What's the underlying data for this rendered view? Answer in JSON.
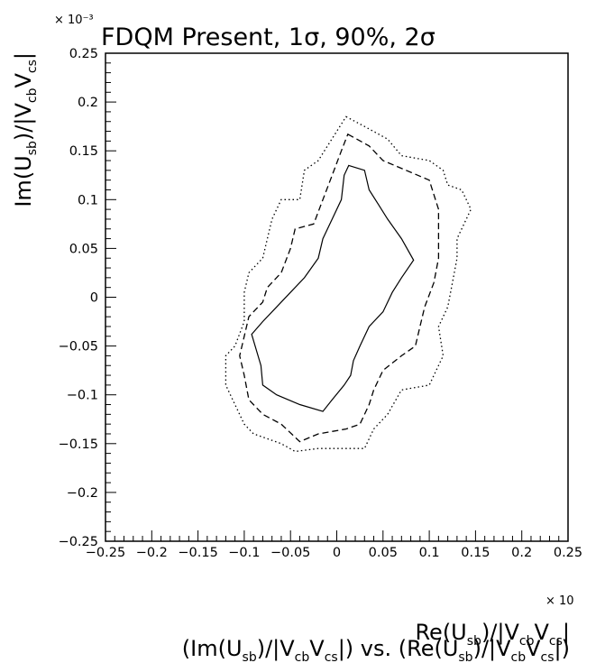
{
  "chart_data": {
    "type": "line",
    "title": "FDQM Present, 1σ, 90%, 2σ",
    "x_exponent": "× 10",
    "y_exponent": "× 10⁻³",
    "xlim": [
      -0.25,
      0.25
    ],
    "ylim": [
      -0.25,
      0.25
    ],
    "x_ticks": [
      "−0.25",
      "−0.2",
      "−0.15",
      "−0.1",
      "−0.05",
      "0",
      "0.05",
      "0.1",
      "0.15",
      "0.2",
      "0.25"
    ],
    "y_ticks": [
      "−0.25",
      "−0.2",
      "−0.15",
      "−0.1",
      "−0.05",
      "0",
      "0.05",
      "0.1",
      "0.15",
      "0.2",
      "0.25"
    ],
    "grid": false,
    "xlabel": {
      "a": "Re(U",
      "a_sub": "sb",
      "b": ")/|V",
      "b_sub1": "cb",
      "c": "V",
      "c_sub": "cs",
      "d": "|"
    },
    "ylabel": {
      "a": "Im(U",
      "a_sub": "sb",
      "b": ")/|V",
      "b_sub1": "cb",
      "c": "V",
      "c_sub": "cs",
      "d": "|"
    },
    "caption": {
      "p1": "(Im(U",
      "s1": "sb",
      "p2": ")/|V",
      "s2": "cb",
      "p3": "V",
      "s3": "cs",
      "p4": "|) vs. (Re(U",
      "s4": "sb",
      "p5": ")/|V",
      "s5": "cb",
      "p6": "V",
      "s6": "cs",
      "p7": "|)"
    },
    "series": [
      {
        "style": "solid",
        "points": [
          [
            0.013,
            0.135
          ],
          [
            0.03,
            0.13
          ],
          [
            0.035,
            0.11
          ],
          [
            0.045,
            0.095
          ],
          [
            0.055,
            0.08
          ],
          [
            0.07,
            0.06
          ],
          [
            0.083,
            0.038
          ],
          [
            0.07,
            0.02
          ],
          [
            0.06,
            0.005
          ],
          [
            0.05,
            -0.015
          ],
          [
            0.035,
            -0.03
          ],
          [
            0.025,
            -0.05
          ],
          [
            0.018,
            -0.065
          ],
          [
            0.015,
            -0.08
          ],
          [
            0.008,
            -0.09
          ],
          [
            -0.005,
            -0.105
          ],
          [
            -0.015,
            -0.117
          ],
          [
            -0.04,
            -0.11
          ],
          [
            -0.065,
            -0.1
          ],
          [
            -0.08,
            -0.09
          ],
          [
            -0.082,
            -0.07
          ],
          [
            -0.092,
            -0.038
          ],
          [
            -0.08,
            -0.025
          ],
          [
            -0.065,
            -0.01
          ],
          [
            -0.05,
            0.005
          ],
          [
            -0.035,
            0.02
          ],
          [
            -0.02,
            0.04
          ],
          [
            -0.015,
            0.06
          ],
          [
            -0.005,
            0.08
          ],
          [
            0.005,
            0.1
          ],
          [
            0.008,
            0.125
          ],
          [
            0.013,
            0.135
          ]
        ]
      },
      {
        "style": "dashed",
        "points": [
          [
            0.012,
            0.167
          ],
          [
            0.035,
            0.155
          ],
          [
            0.05,
            0.14
          ],
          [
            0.075,
            0.13
          ],
          [
            0.1,
            0.12
          ],
          [
            0.11,
            0.09
          ],
          [
            0.11,
            0.04
          ],
          [
            0.105,
            0.015
          ],
          [
            0.095,
            -0.01
          ],
          [
            0.09,
            -0.03
          ],
          [
            0.085,
            -0.05
          ],
          [
            0.07,
            -0.06
          ],
          [
            0.05,
            -0.075
          ],
          [
            0.04,
            -0.095
          ],
          [
            0.035,
            -0.11
          ],
          [
            0.025,
            -0.13
          ],
          [
            0.01,
            -0.135
          ],
          [
            -0.02,
            -0.14
          ],
          [
            -0.04,
            -0.148
          ],
          [
            -0.06,
            -0.13
          ],
          [
            -0.08,
            -0.12
          ],
          [
            -0.095,
            -0.105
          ],
          [
            -0.1,
            -0.08
          ],
          [
            -0.105,
            -0.06
          ],
          [
            -0.1,
            -0.04
          ],
          [
            -0.095,
            -0.02
          ],
          [
            -0.08,
            -0.005
          ],
          [
            -0.075,
            0.01
          ],
          [
            -0.06,
            0.025
          ],
          [
            -0.05,
            0.05
          ],
          [
            -0.045,
            0.07
          ],
          [
            -0.025,
            0.075
          ],
          [
            -0.015,
            0.1
          ],
          [
            -0.005,
            0.125
          ],
          [
            0.005,
            0.15
          ],
          [
            0.012,
            0.167
          ]
        ]
      },
      {
        "style": "dotted",
        "points": [
          [
            0.01,
            0.185
          ],
          [
            0.03,
            0.175
          ],
          [
            0.055,
            0.162
          ],
          [
            0.07,
            0.145
          ],
          [
            0.1,
            0.14
          ],
          [
            0.115,
            0.13
          ],
          [
            0.12,
            0.115
          ],
          [
            0.135,
            0.11
          ],
          [
            0.145,
            0.09
          ],
          [
            0.13,
            0.06
          ],
          [
            0.13,
            0.04
          ],
          [
            0.125,
            0.015
          ],
          [
            0.12,
            -0.01
          ],
          [
            0.11,
            -0.03
          ],
          [
            0.115,
            -0.06
          ],
          [
            0.1,
            -0.09
          ],
          [
            0.07,
            -0.095
          ],
          [
            0.055,
            -0.12
          ],
          [
            0.04,
            -0.135
          ],
          [
            0.03,
            -0.155
          ],
          [
            0.01,
            -0.155
          ],
          [
            -0.02,
            -0.155
          ],
          [
            -0.045,
            -0.158
          ],
          [
            -0.06,
            -0.15
          ],
          [
            -0.09,
            -0.14
          ],
          [
            -0.1,
            -0.13
          ],
          [
            -0.11,
            -0.11
          ],
          [
            -0.12,
            -0.09
          ],
          [
            -0.12,
            -0.06
          ],
          [
            -0.11,
            -0.05
          ],
          [
            -0.1,
            -0.025
          ],
          [
            -0.1,
            0.005
          ],
          [
            -0.095,
            0.025
          ],
          [
            -0.08,
            0.04
          ],
          [
            -0.075,
            0.06
          ],
          [
            -0.07,
            0.08
          ],
          [
            -0.06,
            0.1
          ],
          [
            -0.04,
            0.1
          ],
          [
            -0.035,
            0.13
          ],
          [
            -0.02,
            0.14
          ],
          [
            -0.01,
            0.155
          ],
          [
            0.0,
            0.17
          ],
          [
            0.01,
            0.185
          ]
        ]
      }
    ]
  }
}
